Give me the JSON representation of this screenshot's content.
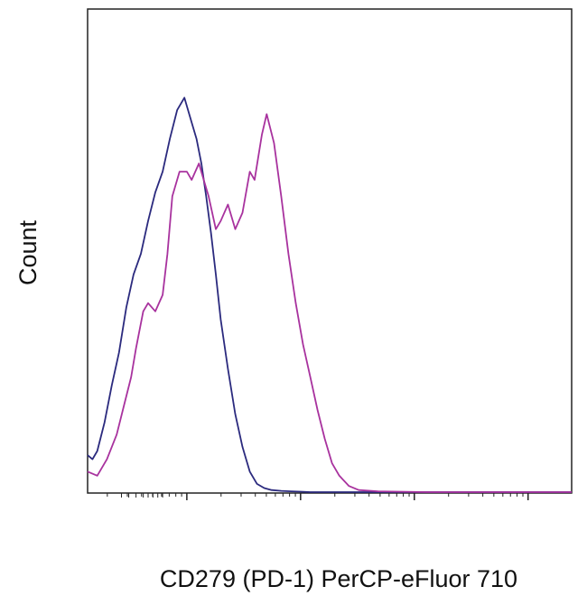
{
  "chart_data": {
    "type": "line",
    "title": "",
    "xlabel": "CD279 (PD-1) PerCP-eFluor 710",
    "ylabel": "Count",
    "x_scale": "log",
    "x_tick_labels": [],
    "y_tick_labels": [],
    "xlim": [
      0,
      1
    ],
    "ylim": [
      0,
      1
    ],
    "grid": false,
    "legend": "none",
    "series": [
      {
        "color": "#2b2a7e",
        "x": [
          0.0,
          0.01,
          0.02,
          0.035,
          0.05,
          0.065,
          0.08,
          0.095,
          0.11,
          0.125,
          0.14,
          0.155,
          0.17,
          0.185,
          0.2,
          0.215,
          0.225,
          0.235,
          0.245,
          0.255,
          0.265,
          0.275,
          0.29,
          0.305,
          0.32,
          0.335,
          0.35,
          0.365,
          0.38,
          0.4,
          0.42,
          0.44,
          0.46,
          0.5,
          0.6,
          0.8,
          1.0
        ],
        "values": [
          0.09,
          0.08,
          0.1,
          0.17,
          0.26,
          0.34,
          0.45,
          0.53,
          0.58,
          0.66,
          0.73,
          0.78,
          0.86,
          0.93,
          0.96,
          0.9,
          0.86,
          0.8,
          0.72,
          0.63,
          0.53,
          0.42,
          0.3,
          0.19,
          0.11,
          0.05,
          0.02,
          0.01,
          0.005,
          0.003,
          0.002,
          0.001,
          0.0,
          0.0,
          0.0,
          0.0,
          0.0
        ]
      },
      {
        "color": "#a8329e",
        "x": [
          0.0,
          0.02,
          0.04,
          0.06,
          0.075,
          0.09,
          0.1,
          0.115,
          0.125,
          0.14,
          0.155,
          0.165,
          0.175,
          0.19,
          0.205,
          0.215,
          0.23,
          0.24,
          0.25,
          0.265,
          0.275,
          0.29,
          0.305,
          0.32,
          0.335,
          0.345,
          0.36,
          0.37,
          0.385,
          0.4,
          0.415,
          0.43,
          0.445,
          0.46,
          0.475,
          0.49,
          0.505,
          0.52,
          0.54,
          0.56,
          0.6,
          0.7,
          1.0
        ],
        "values": [
          0.05,
          0.04,
          0.08,
          0.14,
          0.21,
          0.28,
          0.35,
          0.44,
          0.46,
          0.44,
          0.48,
          0.58,
          0.72,
          0.78,
          0.78,
          0.76,
          0.8,
          0.76,
          0.72,
          0.64,
          0.66,
          0.7,
          0.64,
          0.68,
          0.78,
          0.76,
          0.87,
          0.92,
          0.85,
          0.72,
          0.58,
          0.46,
          0.36,
          0.28,
          0.2,
          0.13,
          0.07,
          0.04,
          0.015,
          0.005,
          0.002,
          0.0,
          0.0
        ]
      }
    ]
  }
}
